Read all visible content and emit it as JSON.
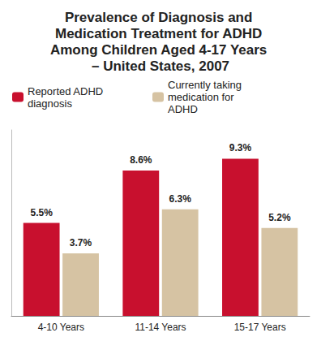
{
  "chart_data": {
    "type": "bar",
    "title": "Prevalence of Diagnosis and Medication Treatment for ADHD Among Children Aged 4-17 Years – United States, 2007",
    "categories": [
      "4-10 Years",
      "11-14 Years",
      "15-17 Years"
    ],
    "series": [
      {
        "name": "Reported ADHD diagnosis",
        "color": "#c8102e",
        "values": [
          5.5,
          8.6,
          9.3
        ],
        "value_labels": [
          "5.5%",
          "8.6%",
          "9.3%"
        ]
      },
      {
        "name": "Currently taking medication for ADHD",
        "color": "#d6c3a3",
        "values": [
          3.7,
          6.3,
          5.2
        ],
        "value_labels": [
          "3.7%",
          "6.3%",
          "5.2%"
        ]
      }
    ],
    "ylim": [
      0,
      11
    ],
    "grid": false,
    "legend": "top-left",
    "data_labels": true,
    "tick_labels": "x"
  }
}
